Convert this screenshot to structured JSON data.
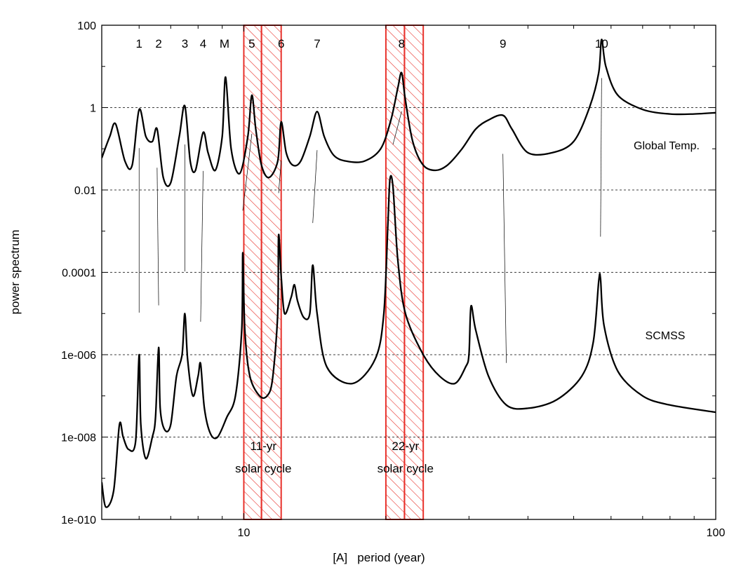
{
  "chart_data": {
    "type": "line",
    "title": "",
    "xlabel": "[A]   period (year)",
    "ylabel": "power spectrum",
    "xscale": "log",
    "yscale": "log",
    "xlim": [
      5,
      100
    ],
    "ylim": [
      1e-10,
      100
    ],
    "x_ticks": [
      {
        "value": 10,
        "label": "10"
      },
      {
        "value": 100,
        "label": "100"
      }
    ],
    "y_ticks": [
      {
        "value": 100,
        "label": "100"
      },
      {
        "value": 1,
        "label": "1"
      },
      {
        "value": 0.01,
        "label": "0.01"
      },
      {
        "value": 0.0001,
        "label": "0.0001"
      },
      {
        "value": 1e-06,
        "label": "1e-006"
      },
      {
        "value": 1e-08,
        "label": "1e-008"
      },
      {
        "value": 1e-10,
        "label": "1e-010"
      }
    ],
    "grid": "horizontal dashed lines at y major ticks",
    "peak_labels": [
      {
        "label": "1",
        "x": 6.0
      },
      {
        "label": "2",
        "x": 6.6
      },
      {
        "label": "3",
        "x": 7.5
      },
      {
        "label": "4",
        "x": 8.2
      },
      {
        "label": "M",
        "x": 9.1
      },
      {
        "label": "5",
        "x": 10.4
      },
      {
        "label": "6",
        "x": 12.0
      },
      {
        "label": "7",
        "x": 14.3
      },
      {
        "label": "8",
        "x": 21.6
      },
      {
        "label": "9",
        "x": 35.4
      },
      {
        "label": "10",
        "x": 57.3
      }
    ],
    "shaded_bands": [
      {
        "x_start": 10.0,
        "x_end": 10.9,
        "annotation": ""
      },
      {
        "x_start": 10.9,
        "x_end": 12.0,
        "annotation": ""
      },
      {
        "x_start": 20.0,
        "x_end": 21.9,
        "annotation": ""
      },
      {
        "x_start": 21.9,
        "x_end": 24.0,
        "annotation": ""
      }
    ],
    "band_annotations": [
      {
        "line1": "11-yr",
        "line2": "solar cycle",
        "x": 11.0
      },
      {
        "line1": "22-yr",
        "line2": "solar cycle",
        "x": 22.0
      }
    ],
    "series": [
      {
        "name": "Global Temp.",
        "x": [
          5.0,
          5.2,
          5.35,
          5.6,
          5.8,
          6.0,
          6.2,
          6.4,
          6.55,
          6.75,
          7.0,
          7.3,
          7.5,
          7.7,
          7.9,
          8.2,
          8.4,
          8.7,
          9.0,
          9.15,
          9.4,
          9.8,
          10.2,
          10.4,
          10.6,
          10.9,
          11.3,
          11.8,
          12.0,
          12.3,
          12.7,
          13.2,
          13.8,
          14.3,
          14.8,
          15.5,
          16.5,
          18.0,
          19.5,
          20.5,
          21.2,
          21.6,
          22.0,
          22.8,
          24.0,
          25.5,
          27.0,
          29.0,
          31.0,
          33.0,
          35.4,
          37.0,
          40.0,
          45.0,
          50.0,
          54.0,
          56.5,
          57.3,
          58.5,
          62.0,
          70.0,
          80.0,
          90.0,
          100.0
        ],
        "y": [
          0.06,
          0.2,
          0.4,
          0.05,
          0.04,
          0.9,
          0.2,
          0.15,
          0.3,
          0.02,
          0.015,
          0.2,
          1.1,
          0.05,
          0.03,
          0.25,
          0.08,
          0.03,
          0.2,
          5.5,
          0.1,
          0.025,
          0.2,
          2.0,
          0.3,
          0.04,
          0.02,
          0.05,
          0.45,
          0.08,
          0.04,
          0.05,
          0.2,
          0.8,
          0.2,
          0.07,
          0.05,
          0.05,
          0.1,
          0.5,
          3.0,
          7.0,
          1.5,
          0.15,
          0.04,
          0.03,
          0.04,
          0.1,
          0.3,
          0.5,
          0.65,
          0.3,
          0.08,
          0.08,
          0.15,
          1.0,
          7.0,
          45.0,
          10.0,
          2.0,
          0.9,
          0.7,
          0.7,
          0.75
        ]
      },
      {
        "name": "SCMSS",
        "x": [
          5.0,
          5.1,
          5.3,
          5.45,
          5.55,
          5.7,
          5.9,
          6.0,
          6.05,
          6.2,
          6.4,
          6.5,
          6.6,
          6.65,
          6.8,
          7.0,
          7.2,
          7.4,
          7.5,
          7.6,
          7.8,
          8.0,
          8.1,
          8.25,
          8.5,
          8.8,
          9.2,
          9.6,
          9.9,
          9.95,
          10.05,
          10.3,
          10.8,
          11.2,
          11.5,
          11.8,
          11.85,
          12.0,
          12.2,
          12.6,
          12.8,
          13.0,
          13.4,
          13.8,
          14.0,
          14.3,
          15.0,
          17.0,
          19.0,
          19.8,
          20.2,
          20.4,
          20.7,
          21.2,
          22.0,
          24.0,
          26.0,
          28.0,
          29.5,
          30.0,
          30.3,
          31.0,
          33.0,
          36.0,
          40.0,
          46.0,
          52.0,
          55.0,
          56.5,
          57.0,
          58.0,
          62.0,
          70.0,
          80.0,
          100.0
        ],
        "y": [
          8e-10,
          2e-10,
          5e-10,
          2e-08,
          1e-08,
          5e-09,
          8e-09,
          1e-06,
          2e-08,
          3e-09,
          1e-08,
          3e-08,
          1.5e-06,
          5e-08,
          1.5e-08,
          2e-08,
          3e-07,
          1e-06,
          1e-05,
          8e-07,
          1e-07,
          3e-07,
          6e-07,
          5e-08,
          1.2e-08,
          1e-08,
          3e-08,
          1e-07,
          4e-06,
          0.0003,
          4e-06,
          3e-07,
          1e-07,
          1e-07,
          2.5e-07,
          1e-05,
          0.0008,
          8e-05,
          1e-05,
          2.5e-05,
          5e-05,
          2e-05,
          8e-06,
          1e-05,
          0.00015,
          1e-05,
          5e-07,
          2e-07,
          8e-07,
          1e-05,
          0.0015,
          0.018,
          0.012,
          0.0002,
          1e-05,
          1e-06,
          3e-07,
          2e-07,
          5e-07,
          1e-06,
          1.5e-05,
          4e-06,
          3e-07,
          6e-08,
          5e-08,
          8e-08,
          3e-07,
          2e-06,
          6e-05,
          7e-05,
          5e-06,
          4e-07,
          1e-07,
          6e-08,
          4e-08
        ]
      }
    ],
    "colors": {
      "curve": "#000000",
      "band": "#e8322c",
      "grid": "#000000",
      "connector": "#000000"
    }
  }
}
